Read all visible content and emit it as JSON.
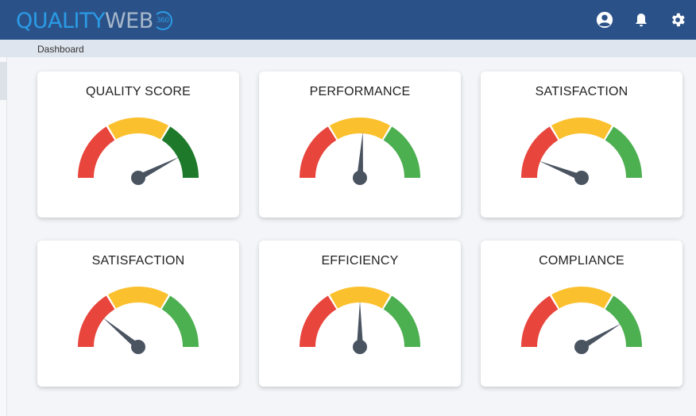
{
  "app": {
    "logo_quality": "QUALITY",
    "logo_web": "WEB",
    "logo_360": "360"
  },
  "header": {
    "icons": [
      "account-circle-icon",
      "bell-icon",
      "gear-icon"
    ]
  },
  "breadcrumb": "Dashboard",
  "gauges": [
    {
      "title": "QUALITY SCORE",
      "level": 0.85,
      "third_zone_color": "#1e7a2a"
    },
    {
      "title": "PERFORMANCE",
      "level": 0.52,
      "third_zone_color": "#4caf50"
    },
    {
      "title": "SATISFACTION",
      "level": 0.12,
      "third_zone_color": "#4caf50"
    },
    {
      "title": "SATISFACTION",
      "level": 0.22,
      "third_zone_color": "#4caf50"
    },
    {
      "title": "EFFICIENCY",
      "level": 0.5,
      "third_zone_color": "#4caf50"
    },
    {
      "title": "COMPLIANCE",
      "level": 0.83,
      "third_zone_color": "#4caf50"
    }
  ],
  "colors": {
    "header_bg": "#2a5288",
    "red_zone": "#e8453c",
    "yellow_zone": "#fbc02d",
    "needle": "#4a5360"
  }
}
